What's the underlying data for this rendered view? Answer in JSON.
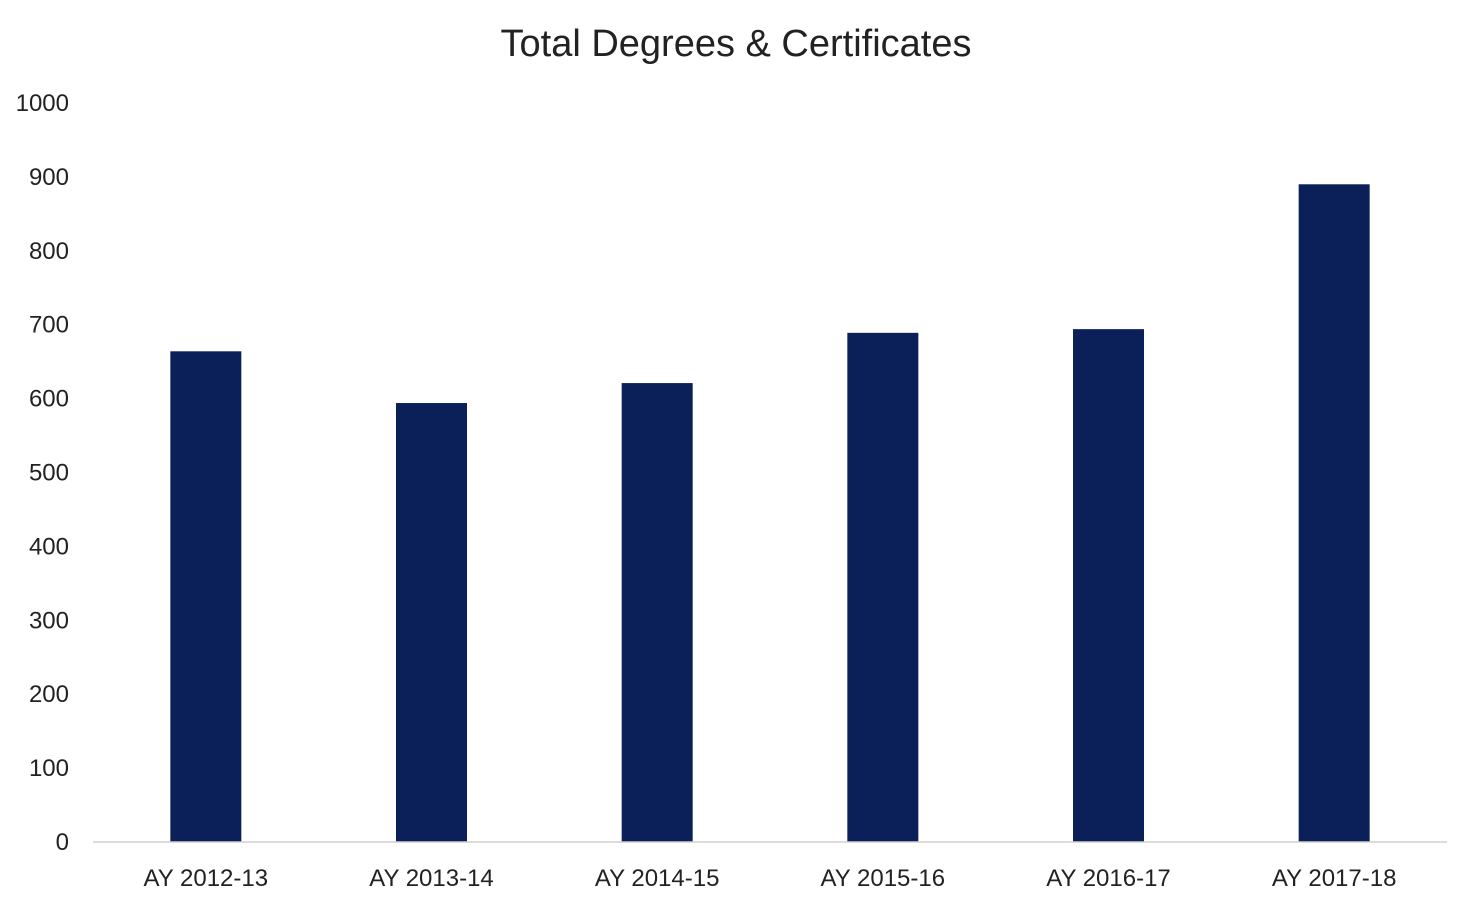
{
  "chart_data": {
    "type": "bar",
    "title": "Total Degrees & Certificates",
    "xlabel": "",
    "ylabel": "",
    "categories": [
      "AY 2012-13",
      "AY 2013-14",
      "AY 2014-15",
      "AY 2015-16",
      "AY 2016-17",
      "AY 2017-18"
    ],
    "values": [
      664,
      594,
      621,
      689,
      694,
      890
    ],
    "ylim": [
      0,
      1000
    ],
    "yticks": [
      "0",
      "100",
      "200",
      "300",
      "400",
      "500",
      "600",
      "700",
      "800",
      "900",
      "1000"
    ],
    "grid": false,
    "legend": "none",
    "bar_color": "#0b2059",
    "axis_color": "#d0d0d0"
  }
}
